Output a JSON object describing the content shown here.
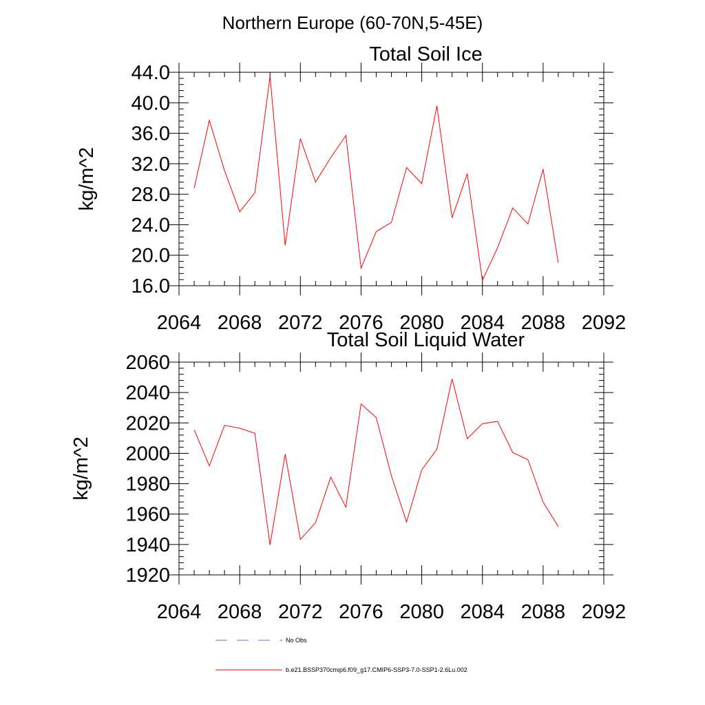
{
  "figure_title": "Northern Europe (60-70N,5-45E)",
  "colors": {
    "series": "#ff0000",
    "obs": "#6e6ea0",
    "axis": "#000000"
  },
  "legend": {
    "obs_label": "No Obs",
    "series_label": "b.e21.BSSP370cmip6.f09_g17.CMIP6-SSP3-7.0-SSP1-2.6Lu.002"
  },
  "chart_data": [
    {
      "type": "line",
      "title": "Total Soil Ice",
      "xlabel": "",
      "ylabel": "kg/m^2",
      "xlim": [
        2064,
        2092
      ],
      "ylim": [
        16.0,
        44.0
      ],
      "xticks": [
        2064,
        2068,
        2072,
        2076,
        2080,
        2084,
        2088,
        2092
      ],
      "xticklabels": [
        "2064",
        "2068",
        "2072",
        "2076",
        "2080",
        "2084",
        "2088",
        "2092"
      ],
      "yticks": [
        16,
        20,
        24,
        28,
        32,
        36,
        40,
        44
      ],
      "yticklabels": [
        "16.0",
        "20.0",
        "24.0",
        "28.0",
        "32.0",
        "36.0",
        "40.0",
        "44.0"
      ],
      "x": [
        2065,
        2066,
        2067,
        2068,
        2069,
        2070,
        2071,
        2072,
        2073,
        2074,
        2075,
        2076,
        2077,
        2078,
        2079,
        2080,
        2081,
        2082,
        2083,
        2084,
        2085,
        2086,
        2087,
        2088,
        2089
      ],
      "series": [
        {
          "name": "b.e21.BSSP370cmip6.f09_g17.CMIP6-SSP3-7.0-SSP1-2.6Lu.002",
          "values": [
            28.8,
            37.7,
            31.1,
            25.7,
            28.2,
            43.5,
            21.3,
            35.3,
            29.6,
            32.8,
            35.7,
            18.3,
            23.1,
            24.3,
            31.5,
            29.4,
            39.6,
            24.9,
            30.7,
            16.7,
            21.0,
            26.2,
            24.1,
            31.3,
            19.0
          ]
        }
      ]
    },
    {
      "type": "line",
      "title": "Total Soil Liquid Water",
      "xlabel": "",
      "ylabel": "kg/m^2",
      "xlim": [
        2064,
        2092
      ],
      "ylim": [
        1920,
        2060
      ],
      "xticks": [
        2064,
        2068,
        2072,
        2076,
        2080,
        2084,
        2088,
        2092
      ],
      "xticklabels": [
        "2064",
        "2068",
        "2072",
        "2076",
        "2080",
        "2084",
        "2088",
        "2092"
      ],
      "yticks": [
        1920,
        1940,
        1960,
        1980,
        2000,
        2020,
        2040,
        2060
      ],
      "yticklabels": [
        "1920",
        "1940",
        "1960",
        "1980",
        "2000",
        "2020",
        "2040",
        "2060"
      ],
      "x": [
        2065,
        2066,
        2067,
        2068,
        2069,
        2070,
        2071,
        2072,
        2073,
        2074,
        2075,
        2076,
        2077,
        2078,
        2079,
        2080,
        2081,
        2082,
        2083,
        2084,
        2085,
        2086,
        2087,
        2088,
        2089
      ],
      "series": [
        {
          "name": "b.e21.BSSP370cmip6.f09_g17.CMIP6-SSP3-7.0-SSP1-2.6Lu.002",
          "values": [
            2015.5,
            1991.8,
            2018.4,
            2016.5,
            2013.2,
            1939.7,
            1999.5,
            1943.3,
            1954.3,
            1984.3,
            1964.5,
            2032.5,
            2023.5,
            1985.2,
            1954.8,
            1989.1,
            2002.7,
            2049.0,
            2009.6,
            2019.5,
            2021.0,
            2000.5,
            1995.8,
            1967.9,
            1951.8
          ]
        }
      ]
    }
  ]
}
